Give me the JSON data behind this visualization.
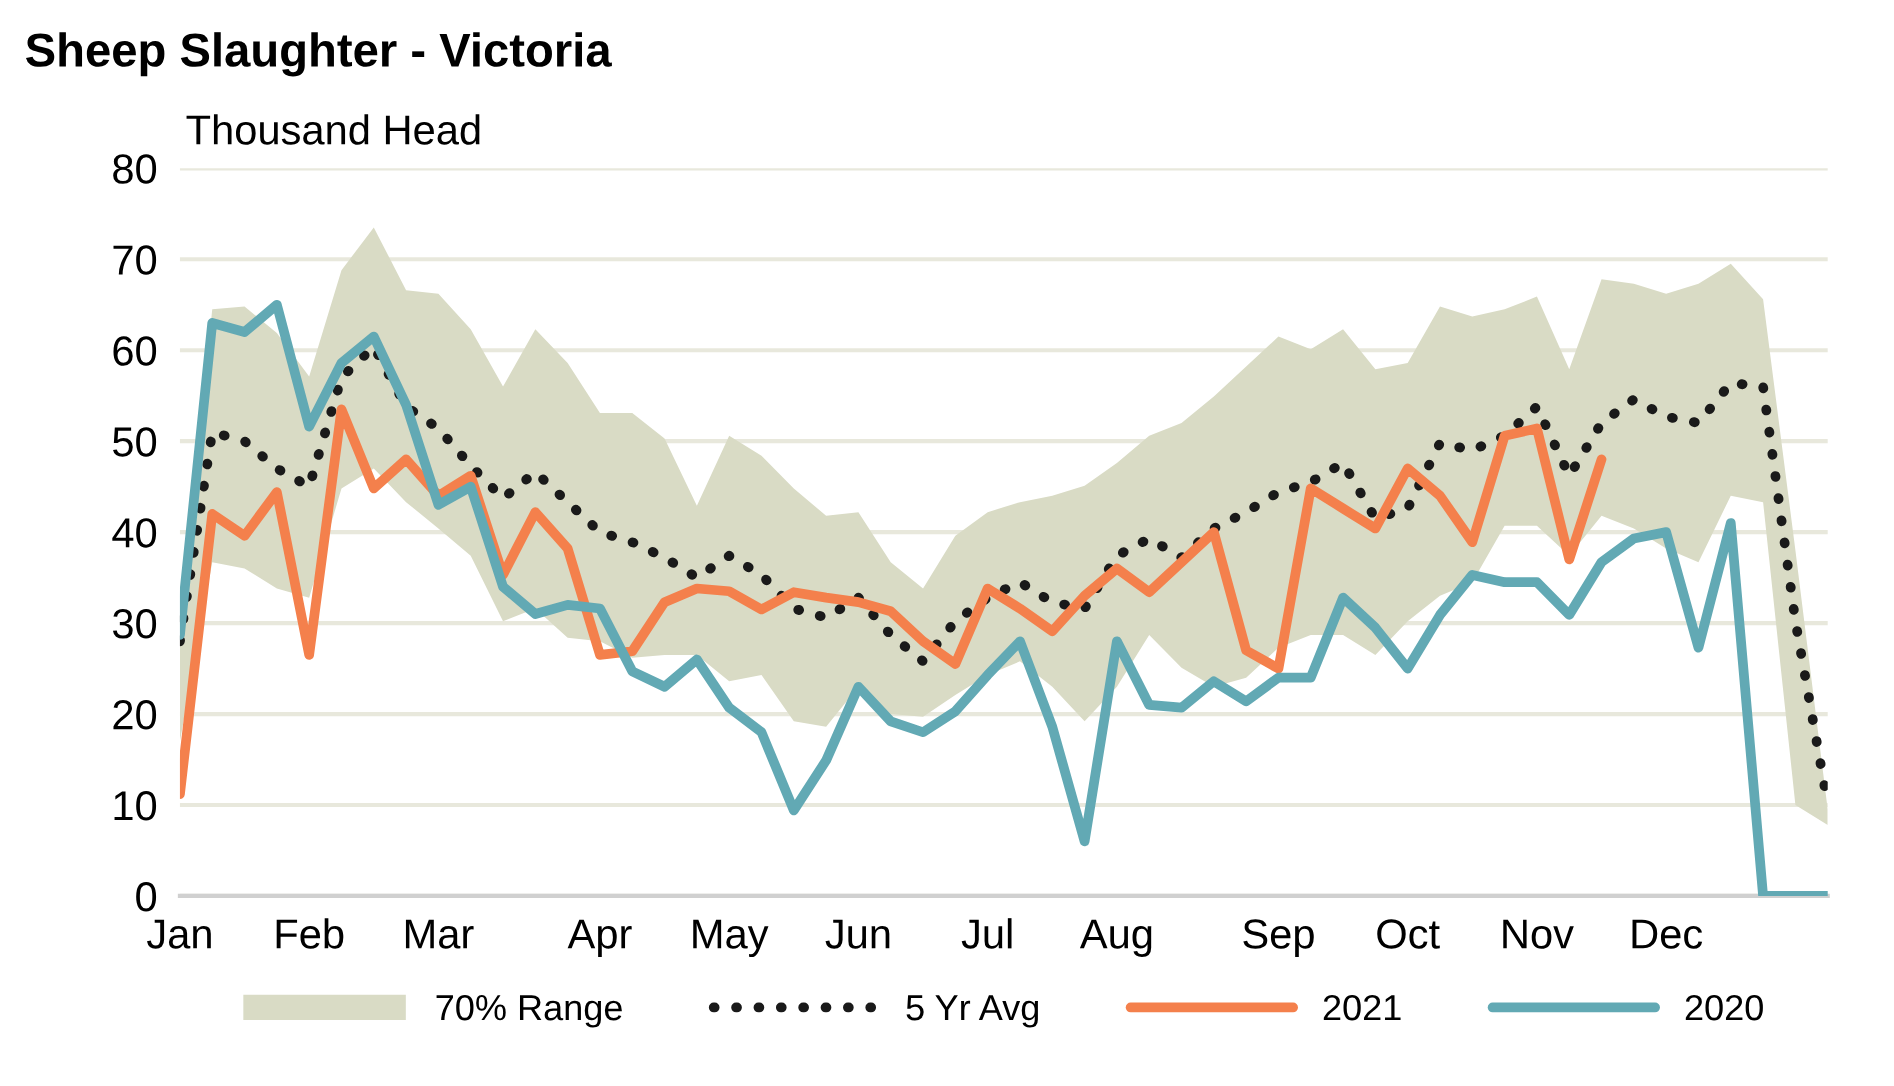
{
  "chart_data": {
    "type": "line",
    "title": "Sheep Slaughter - Victoria",
    "ylabel": "Thousand Head",
    "categories": [
      "Jan",
      null,
      null,
      null,
      "Feb",
      null,
      null,
      null,
      "Mar",
      null,
      null,
      null,
      null,
      "Apr",
      null,
      null,
      null,
      "May",
      null,
      null,
      null,
      "Jun",
      null,
      null,
      null,
      "Jul",
      null,
      null,
      null,
      "Aug",
      null,
      null,
      null,
      null,
      "Sep",
      null,
      null,
      null,
      "Oct",
      null,
      null,
      null,
      "Nov",
      null,
      null,
      null,
      "Dec",
      null,
      null,
      null,
      null,
      null
    ],
    "ylim": [
      0,
      80
    ],
    "yticks": [
      0,
      10,
      20,
      30,
      40,
      50,
      60,
      70,
      80
    ],
    "grid": "y",
    "legend": "bottom",
    "series": [
      {
        "name": "70% Range",
        "type": "area",
        "color": "#d9dbc5",
        "lower": [
          17,
          36.7,
          36,
          33.8,
          32.8,
          44.8,
          47,
          43.3,
          40.4,
          37.4,
          30.2,
          31.6,
          28.4,
          28,
          26.2,
          26.5,
          26.5,
          23.6,
          24.3,
          19.2,
          18.6,
          23,
          20,
          19.7,
          22.1,
          24.3,
          25.8,
          23,
          19.2,
          23,
          28.7,
          25.1,
          23,
          24,
          27.3,
          28.7,
          28.7,
          26.5,
          30.2,
          33,
          34.5,
          40.7,
          40.7,
          37.4,
          41.8,
          40.4,
          38.2,
          36.7,
          44,
          43.3,
          10,
          7.8
        ],
        "values": [
          null,
          null,
          null,
          null,
          null,
          null,
          null,
          null,
          null,
          null,
          null,
          null,
          null,
          null,
          null,
          null,
          null,
          null,
          null,
          null,
          null,
          null,
          null,
          null,
          null,
          null,
          null,
          null,
          null,
          null,
          null,
          null,
          null,
          null,
          null,
          null,
          null,
          null,
          null,
          null,
          null,
          null,
          null,
          null,
          null,
          null,
          null,
          null,
          null,
          null,
          null,
          null
        ],
        "upper": [
          30,
          64.5,
          64.8,
          61.9,
          57.1,
          68.8,
          73.5,
          66.6,
          66.2,
          62.3,
          56,
          62.3,
          58.6,
          53.1,
          53.1,
          50.3,
          42.9,
          50.6,
          48.4,
          44.8,
          41.8,
          42.2,
          36.7,
          33.8,
          39.6,
          42.2,
          43.3,
          44,
          45.1,
          47.6,
          50.6,
          52,
          54.9,
          58.2,
          61.5,
          60.1,
          62.3,
          57.9,
          58.6,
          64.8,
          63.7,
          64.5,
          65.9,
          57.9,
          67.8,
          67.3,
          66.2,
          67.3,
          69.5,
          65.6,
          38,
          9.5
        ]
      },
      {
        "name": "5 Yr Avg",
        "color": "#1a1a1a",
        "line_style": "dotted",
        "values": [
          28,
          51,
          50,
          47,
          45,
          57,
          60.4,
          53.8,
          51.4,
          47.3,
          43.7,
          46.6,
          43.3,
          40,
          38.9,
          37.2,
          35,
          37.4,
          35.3,
          31.6,
          30.6,
          32.8,
          28.7,
          25.8,
          30.2,
          32.8,
          34.5,
          32.3,
          31.6,
          37.4,
          39.3,
          37.2,
          40.4,
          42.2,
          44.4,
          45.5,
          47.6,
          41.5,
          42.6,
          49.8,
          49,
          50.6,
          53.8,
          46.2,
          52,
          54.6,
          52.7,
          52,
          56.4,
          56,
          30.2,
          10.1
        ]
      },
      {
        "name": "2021",
        "color": "#f4804c",
        "line_style": "solid",
        "values": [
          11.2,
          42,
          39.6,
          44.4,
          26.5,
          53.5,
          44.8,
          48,
          44,
          46.2,
          35.3,
          42.2,
          38.2,
          26.5,
          26.9,
          32.3,
          33.8,
          33.5,
          31.5,
          33.4,
          32.8,
          32.3,
          31.3,
          28,
          25.5,
          33.8,
          31.6,
          29.1,
          33,
          36,
          33.4,
          36.7,
          40,
          27,
          25,
          44.8,
          42.6,
          40.4,
          47,
          44,
          38.9,
          50.6,
          51.4,
          37,
          48,
          null,
          null,
          null,
          null,
          null,
          null,
          null
        ]
      },
      {
        "name": "2020",
        "color": "#62a9b4",
        "line_style": "solid",
        "values": [
          28.7,
          63,
          62,
          65,
          51.6,
          58.6,
          61.5,
          54,
          43,
          45,
          34,
          31,
          32,
          31.6,
          24.7,
          23,
          26,
          20.7,
          18,
          9.4,
          14.9,
          23,
          19.2,
          18,
          20.3,
          24.3,
          28,
          18.6,
          6,
          28,
          21,
          20.7,
          23.6,
          21.4,
          24,
          24,
          32.8,
          29.5,
          25,
          30.9,
          35.3,
          34.5,
          34.5,
          30.9,
          36.7,
          39.3,
          40,
          27.3,
          41,
          0,
          0,
          0
        ]
      }
    ]
  }
}
